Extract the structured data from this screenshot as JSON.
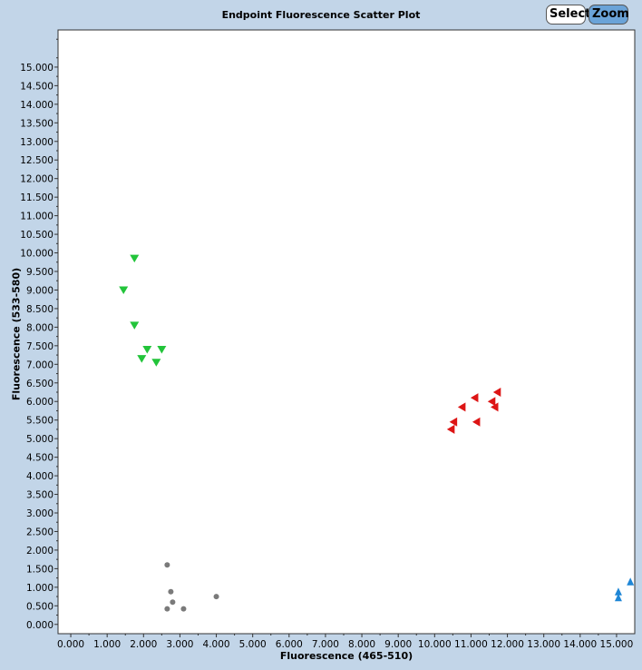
{
  "chart_data": {
    "type": "scatter",
    "title": "Endpoint Fluorescence Scatter Plot",
    "xlabel": "Fluorescence (465-510)",
    "ylabel": "Fluorescence (533-580)",
    "xlim": [
      -0.35,
      15.5
    ],
    "ylim": [
      -0.25,
      16.0
    ],
    "x_ticks": [
      0,
      1,
      2,
      3,
      4,
      5,
      6,
      7,
      8,
      9,
      10,
      11,
      12,
      13,
      14,
      15
    ],
    "y_ticks": [
      0,
      0.5,
      1,
      1.5,
      2,
      2.5,
      3,
      3.5,
      4,
      4.5,
      5,
      5.5,
      6,
      6.5,
      7,
      7.5,
      8,
      8.5,
      9,
      9.5,
      10,
      10.5,
      11,
      11.5,
      12,
      12.5,
      13,
      13.5,
      14,
      14.5,
      15
    ],
    "tick_format": "fixed3",
    "grid": false,
    "series": [
      {
        "marker": "triangle-down",
        "color": "#22c43a",
        "points": [
          [
            1.75,
            9.85
          ],
          [
            1.45,
            9.0
          ],
          [
            1.75,
            8.05
          ],
          [
            2.1,
            7.4
          ],
          [
            2.5,
            7.4
          ],
          [
            1.95,
            7.15
          ],
          [
            2.35,
            7.05
          ]
        ]
      },
      {
        "marker": "triangle-left",
        "color": "#dd1515",
        "points": [
          [
            11.72,
            6.25
          ],
          [
            11.1,
            6.1
          ],
          [
            11.57,
            6.0
          ],
          [
            10.75,
            5.85
          ],
          [
            11.65,
            5.85
          ],
          [
            10.52,
            5.45
          ],
          [
            11.15,
            5.45
          ],
          [
            10.45,
            5.25
          ]
        ]
      },
      {
        "marker": "triangle-up",
        "color": "#1e86d6",
        "points": [
          [
            15.38,
            1.15
          ],
          [
            15.05,
            0.88
          ],
          [
            15.05,
            0.72
          ]
        ]
      },
      {
        "marker": "circle",
        "color": "#7a7a7a",
        "points": [
          [
            2.65,
            1.6
          ],
          [
            2.75,
            0.88
          ],
          [
            2.8,
            0.6
          ],
          [
            4.0,
            0.75
          ],
          [
            2.65,
            0.42
          ],
          [
            3.1,
            0.42
          ]
        ]
      }
    ]
  },
  "toolbar": {
    "select_label": "Select",
    "zoom_label": "Zoom"
  }
}
